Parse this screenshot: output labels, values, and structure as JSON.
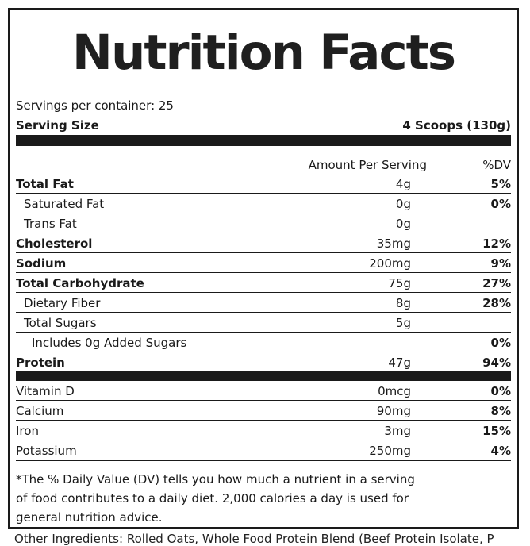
{
  "title": "Nutrition Facts",
  "servings_per_container": "Servings per container: 25",
  "serving_size_label": "Serving Size",
  "serving_size_value": "4 Scoops (130g)",
  "col_amount": "Amount Per Serving",
  "col_dv": "%DV",
  "nutrients": [
    {
      "name": "Total Fat",
      "amount": "4g",
      "dv": "5%"
    },
    {
      "name": "Saturated Fat",
      "amount": "0g",
      "dv": "0%"
    },
    {
      "name": "Trans Fat",
      "amount": "0g",
      "dv": ""
    },
    {
      "name": "Cholesterol",
      "amount": "35mg",
      "dv": "12%"
    },
    {
      "name": "Sodium",
      "amount": "200mg",
      "dv": "9%"
    },
    {
      "name": "Total Carbohydrate",
      "amount": "75g",
      "dv": "27%"
    },
    {
      "name": "Dietary Fiber",
      "amount": "8g",
      "dv": "28%"
    },
    {
      "name": "Total Sugars",
      "amount": "5g",
      "dv": ""
    },
    {
      "name": "Includes 0g Added Sugars",
      "amount": "",
      "dv": "0%"
    },
    {
      "name": "Protein",
      "amount": "47g",
      "dv": "94%"
    }
  ],
  "vitamins": [
    {
      "name": "Vitamin D",
      "amount": "0mcg",
      "dv": "0%"
    },
    {
      "name": "Calcium",
      "amount": "90mg",
      "dv": "8%"
    },
    {
      "name": "Iron",
      "amount": "3mg",
      "dv": "15%"
    },
    {
      "name": "Potassium",
      "amount": "250mg",
      "dv": "4%"
    }
  ],
  "footnote": "*The % Daily Value (DV) tells you how much a nutrient in a serving of food contributes to a daily diet. 2,000 calories a day is used for general nutrition advice.",
  "other_ingredients": "Other Ingredients: Rolled Oats, Whole Food Protein Blend (Beef Protein Isolate, P"
}
